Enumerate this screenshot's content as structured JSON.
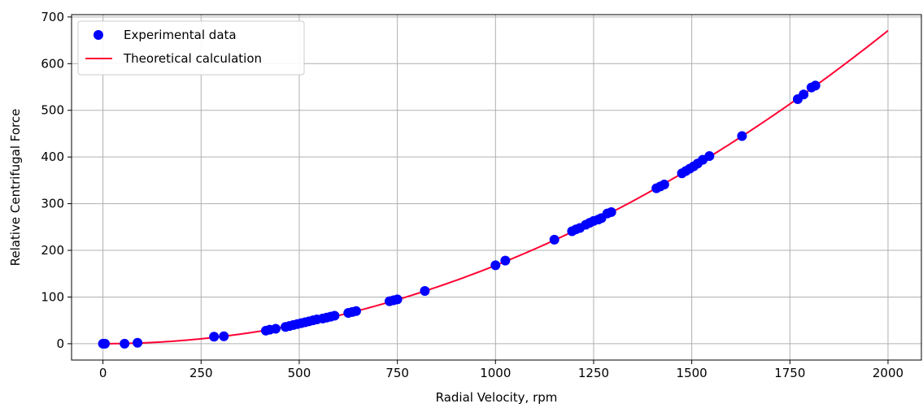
{
  "chart_data": {
    "type": "scatter",
    "xlabel": "Radial Velocity, rpm",
    "ylabel": "Relative Centrifugal Force",
    "xlim": [
      -80,
      2085
    ],
    "ylim": [
      -35,
      705
    ],
    "xticks": [
      0,
      250,
      500,
      750,
      1000,
      1250,
      1500,
      1750,
      2000
    ],
    "yticks": [
      0,
      100,
      200,
      300,
      400,
      500,
      600,
      700
    ],
    "grid": true,
    "legend_position": "top-left",
    "series": [
      {
        "name": "Experimental data",
        "kind": "scatter",
        "color": "#0000ff",
        "x": [
          0,
          5,
          55,
          88,
          283,
          308,
          415,
          425,
          440,
          465,
          475,
          485,
          495,
          505,
          515,
          525,
          535,
          545,
          560,
          570,
          580,
          590,
          625,
          635,
          645,
          730,
          740,
          750,
          820,
          1000,
          1025,
          1150,
          1195,
          1205,
          1215,
          1230,
          1240,
          1250,
          1262,
          1270,
          1285,
          1295,
          1410,
          1420,
          1430,
          1475,
          1485,
          1495,
          1505,
          1515,
          1528,
          1545,
          1628,
          1770,
          1785,
          1805,
          1815
        ],
        "y": [
          0,
          0,
          0,
          2,
          15,
          16,
          28,
          30,
          32,
          36,
          38,
          40,
          42,
          44,
          46,
          48,
          50,
          52,
          54,
          56,
          58,
          60,
          66,
          68,
          70,
          91,
          93,
          95,
          113,
          168,
          178,
          223,
          241,
          245,
          248,
          255,
          259,
          263,
          266,
          269,
          279,
          282,
          333,
          337,
          341,
          365,
          370,
          375,
          380,
          386,
          394,
          402,
          445,
          524,
          534,
          549,
          553
        ]
      },
      {
        "name": "Theoretical calculation",
        "kind": "line",
        "color": "#ff0033",
        "formula_coefficient": 0.0001677,
        "x_range": [
          0,
          2000
        ]
      }
    ]
  }
}
